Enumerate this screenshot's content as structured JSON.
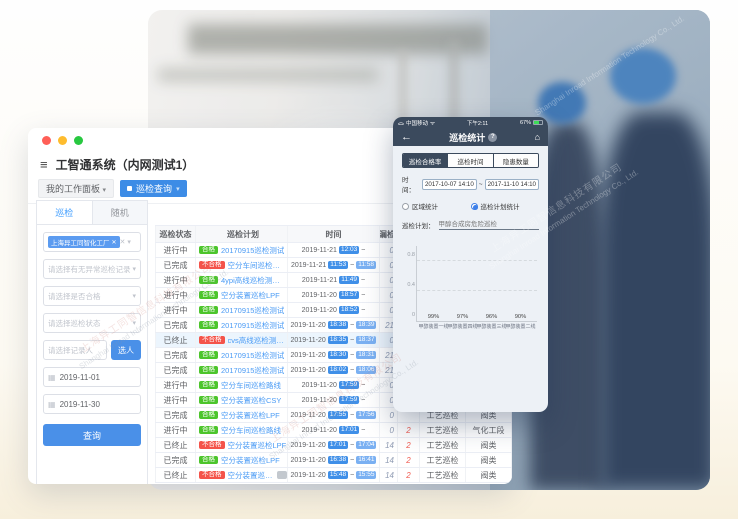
{
  "watermark": {
    "cn": "上海异工同智信息科技有限公司",
    "en": "Shanghai Inroad Information Technology Co., Ltd."
  },
  "window": {
    "title": "工智通系统（内网测试1）",
    "workspace_tab": "我的工作面板",
    "active_tab": "巡检查询",
    "sidebar": {
      "tabs": [
        "巡检",
        "随机"
      ],
      "org_chip": "上海异工同智化工厂",
      "selects": [
        "请选择有无异常巡检记录",
        "请选择是否合格",
        "请选择巡检状态"
      ],
      "recorder_placeholder": "请选择记录人",
      "pick_button": "选人",
      "date_start": "2019-11-01",
      "date_end": "2019-11-30",
      "search_button": "查询"
    },
    "table": {
      "headers": [
        "巡检状态",
        "巡检计划",
        "时间",
        "漏检",
        "",
        "",
        ""
      ],
      "time_separator": "~",
      "rows": [
        {
          "status": "进行中",
          "result": "合格",
          "ok": true,
          "plan": "20170915巡检测试",
          "date": "2019-11-21",
          "start": "12:03",
          "end": "",
          "a": "0",
          "b": "",
          "c": "",
          "d": "",
          "hl": false,
          "tag": false
        },
        {
          "status": "已完成",
          "result": "不合格",
          "ok": false,
          "plan": "空分车间巡检路线",
          "date": "2019-11-21",
          "start": "11:53",
          "end": "11:58",
          "a": "0",
          "b": "",
          "c": "",
          "d": "",
          "hl": false,
          "tag": false
        },
        {
          "status": "进行中",
          "result": "合格",
          "ok": true,
          "plan": "4ypi高线巡检测试计划",
          "date": "2019-11-21",
          "start": "11:49",
          "end": "",
          "a": "0",
          "b": "",
          "c": "",
          "d": "",
          "hl": false,
          "tag": false
        },
        {
          "status": "进行中",
          "result": "合格",
          "ok": true,
          "plan": "空分装置巡检LPF",
          "date": "2019-11-20",
          "start": "18:57",
          "end": "",
          "a": "0",
          "b": "",
          "c": "",
          "d": "",
          "hl": false,
          "tag": false
        },
        {
          "status": "进行中",
          "result": "合格",
          "ok": true,
          "plan": "20170915巡检测试",
          "date": "2019-11-20",
          "start": "18:52",
          "end": "",
          "a": "0",
          "b": "",
          "c": "",
          "d": "",
          "hl": false,
          "tag": false
        },
        {
          "status": "已完成",
          "result": "合格",
          "ok": true,
          "plan": "20170915巡检测试",
          "date": "2019-11-20",
          "start": "18:38",
          "end": "18:39",
          "a": "21",
          "b": "",
          "c": "",
          "d": "",
          "hl": false,
          "tag": false
        },
        {
          "status": "已终止",
          "result": "不合格",
          "ok": false,
          "plan": "cvs高线巡检测试计划",
          "date": "2019-11-20",
          "start": "18:35",
          "end": "18:37",
          "a": "0",
          "b": "",
          "c": "",
          "d": "",
          "hl": true,
          "tag": false
        },
        {
          "status": "已完成",
          "result": "合格",
          "ok": true,
          "plan": "20170915巡检测试",
          "date": "2019-11-20",
          "start": "18:30",
          "end": "18:31",
          "a": "21",
          "b": "",
          "c": "",
          "d": "",
          "hl": false,
          "tag": false
        },
        {
          "status": "已完成",
          "result": "合格",
          "ok": true,
          "plan": "20170915巡检测试",
          "date": "2019-11-20",
          "start": "18:02",
          "end": "18:06",
          "a": "21",
          "b": "",
          "c": "",
          "d": "",
          "hl": false,
          "tag": false
        },
        {
          "status": "进行中",
          "result": "合格",
          "ok": true,
          "plan": "空分车间巡检路线",
          "date": "2019-11-20",
          "start": "17:59",
          "end": "",
          "a": "0",
          "b": "",
          "c": "",
          "d": "",
          "hl": false,
          "tag": false
        },
        {
          "status": "进行中",
          "result": "合格",
          "ok": true,
          "plan": "空分装置巡检CSY",
          "date": "2019-11-20",
          "start": "17:59",
          "end": "",
          "a": "0",
          "b": "",
          "c": "",
          "d": "",
          "hl": false,
          "tag": false
        },
        {
          "status": "已完成",
          "result": "合格",
          "ok": true,
          "plan": "空分装置巡检LPF",
          "date": "2019-11-20",
          "start": "17:55",
          "end": "17:56",
          "a": "0",
          "b": "",
          "c": "工艺巡检",
          "d": "阀类",
          "hl": false,
          "tag": false
        },
        {
          "status": "进行中",
          "result": "合格",
          "ok": true,
          "plan": "空分车间巡检路线",
          "date": "2019-11-20",
          "start": "17:01",
          "end": "",
          "a": "0",
          "b": "2",
          "c": "工艺巡检",
          "d": "气化工段",
          "hl": false,
          "tag": false
        },
        {
          "status": "已终止",
          "result": "不合格",
          "ok": false,
          "plan": "空分装置巡检LPF",
          "date": "2019-11-20",
          "start": "17:01",
          "end": "17:04",
          "a": "14",
          "b": "2",
          "c": "工艺巡检",
          "d": "阀类",
          "hl": false,
          "tag": false
        },
        {
          "status": "已完成",
          "result": "合格",
          "ok": true,
          "plan": "空分装置巡检LPF",
          "date": "2019-11-20",
          "start": "16:38",
          "end": "16:41",
          "a": "14",
          "b": "2",
          "c": "工艺巡检",
          "d": "阀类",
          "hl": false,
          "tag": false
        },
        {
          "status": "已终止",
          "result": "不合格",
          "ok": false,
          "plan": "空分装置巡检LPF",
          "date": "2019-11-20",
          "start": "15:48",
          "end": "15:55",
          "a": "14",
          "b": "2",
          "c": "工艺巡检",
          "d": "阀类",
          "hl": false,
          "tag": true
        }
      ]
    }
  },
  "phone": {
    "status_bar": {
      "carrier": "中国移动",
      "time": "下午2:11",
      "battery": "67%"
    },
    "nav": {
      "title": "巡检统计"
    },
    "segments": [
      "巡检合格率",
      "巡检时间",
      "隐患数量"
    ],
    "active_segment": 0,
    "time_label": "时间：",
    "time_from": "2017-10-07 14:10",
    "time_separator": "~",
    "time_to": "2017-11-10 14:10",
    "radio_options": [
      "区域统计",
      "巡检计划统计"
    ],
    "selected_radio": 1,
    "plan_label": "巡检计划：",
    "plan_value": "甲醇合成房危险巡检",
    "chart_data": {
      "type": "bar",
      "title": "",
      "categories": [
        "甲醇装置一线",
        "甲醇装置四线",
        "甲醇装置三线",
        "甲醇装置二线"
      ],
      "values": [
        0.99,
        0.97,
        0.96,
        0.9
      ],
      "value_labels": [
        "99%",
        "97%",
        "96%",
        "90%"
      ],
      "xlabel": "",
      "ylabel": "",
      "ylim": [
        0,
        1
      ],
      "yticks": [
        0,
        0.4,
        0.8
      ],
      "grid": "dashed-horizontal",
      "legend": "none",
      "bar_colors": [
        "#2d4156",
        "#5d83a9",
        "#5d83a9",
        "#5d83a9"
      ]
    }
  },
  "colors": {
    "primary_blue": "#3d8ce6",
    "badge_green": "#4cc52c",
    "badge_red": "#f4534a",
    "phone_navy": "#3b4a5d",
    "bar_dark": "#2d4156",
    "bar_light": "#5d83a9"
  }
}
